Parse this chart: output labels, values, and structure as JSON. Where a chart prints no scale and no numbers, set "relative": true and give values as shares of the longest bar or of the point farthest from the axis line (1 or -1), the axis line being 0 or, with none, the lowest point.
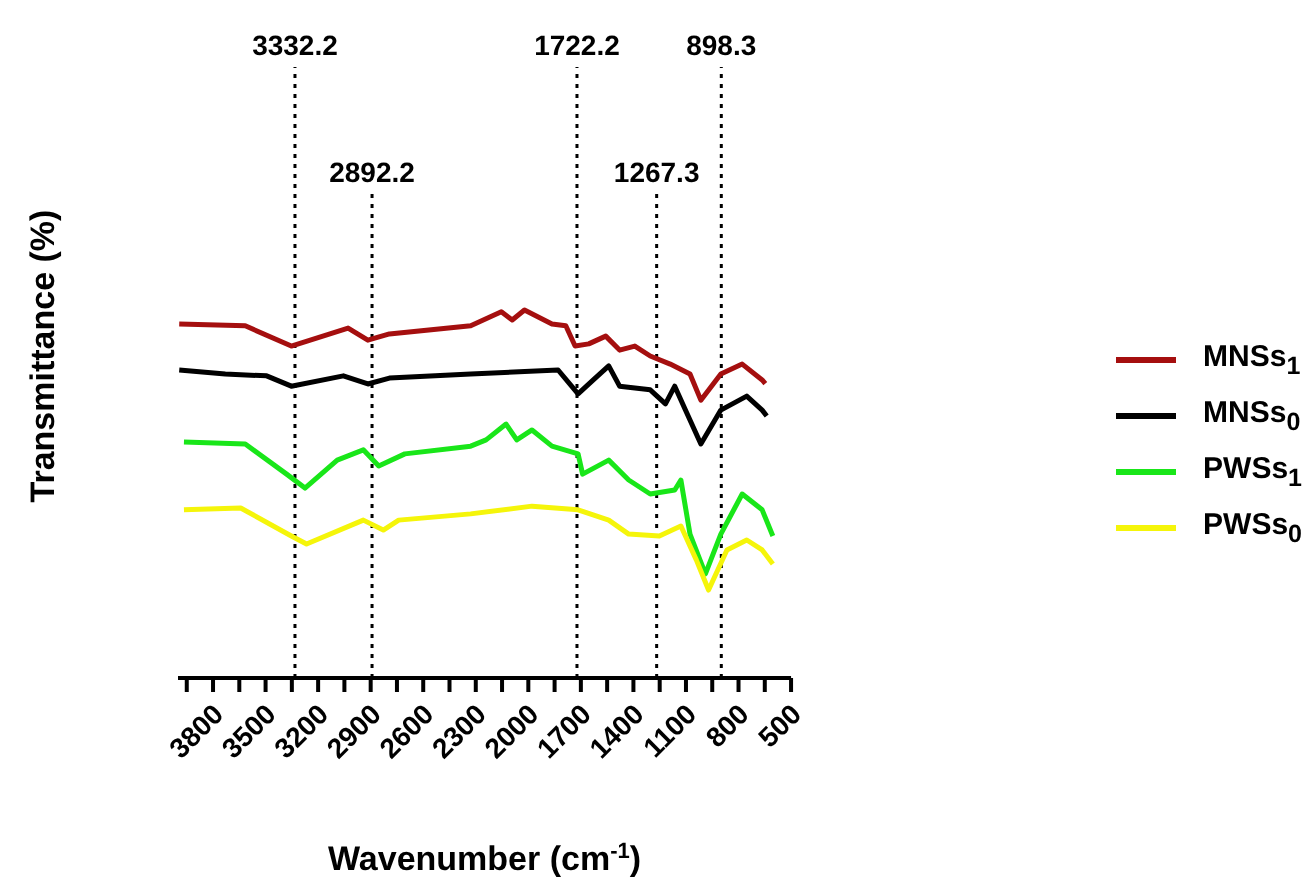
{
  "chart_data": {
    "type": "line",
    "xlabel": "Wavenumber (cm$^{-1}$)",
    "ylabel": "Transmittance (%)",
    "relative": true,
    "grid": false,
    "legend": "right",
    "line_style": "solid",
    "xlim": [
      4000,
      500
    ],
    "xticks": [
      {
        "value": 3950,
        "label": null
      },
      3800,
      {
        "value": 3650,
        "label": null
      },
      3500,
      {
        "value": 3350,
        "label": null
      },
      3200,
      {
        "value": 3050,
        "label": null
      },
      2900,
      {
        "value": 2750,
        "label": null
      },
      2600,
      {
        "value": 2450,
        "label": null
      },
      2300,
      {
        "value": 2150,
        "label": null
      },
      2000,
      {
        "value": 1850,
        "label": null
      },
      1700,
      {
        "value": 1550,
        "label": null
      },
      1400,
      {
        "value": 1250,
        "label": null
      },
      1100,
      {
        "value": 950,
        "label": null
      },
      800,
      {
        "value": 650,
        "label": null
      },
      500
    ],
    "ref_lines": [
      {
        "axis": "x",
        "value": 3332.2,
        "label": "3332.2",
        "color": "#000000",
        "line_style": "dotted"
      },
      {
        "axis": "x",
        "value": 2892.2,
        "label": "2892.2",
        "color": "#000000",
        "line_style": "dotted"
      },
      {
        "axis": "x",
        "value": 1722.2,
        "label": "1722.2",
        "color": "#000000",
        "line_style": "dotted"
      },
      {
        "axis": "x",
        "value": 1267.3,
        "label": "1267.3",
        "color": "#000000",
        "line_style": "dotted"
      },
      {
        "axis": "x",
        "value": 898.3,
        "label": "898.3",
        "color": "#000000",
        "line_style": "dotted"
      }
    ],
    "series": [
      {
        "name": "MNSs$_{1}$",
        "color": "#a50f0f",
        "x": [
          3993,
          3616,
          3353,
          3029,
          2916,
          2793,
          2329,
          2154,
          2092,
          2022,
          1865,
          1786,
          1733,
          1655,
          1558,
          1479,
          1392,
          1304,
          1190,
          1077,
          1015,
          901,
          779,
          665,
          647
        ],
        "values": [
          0.962,
          0.957,
          0.902,
          0.951,
          0.918,
          0.935,
          0.957,
          0.995,
          0.973,
          1.0,
          0.962,
          0.957,
          0.902,
          0.908,
          0.929,
          0.891,
          0.902,
          0.875,
          0.853,
          0.826,
          0.755,
          0.826,
          0.853,
          0.81,
          0.8
        ]
      },
      {
        "name": "MNSs$_{0}$",
        "color": "#000000",
        "x": [
          3993,
          3730,
          3494,
          3353,
          3056,
          2916,
          2793,
          2329,
          1830,
          1716,
          1629,
          1541,
          1479,
          1304,
          1217,
          1164,
          1103,
          1015,
          901,
          753,
          665,
          639
        ],
        "values": [
          0.837,
          0.826,
          0.821,
          0.793,
          0.821,
          0.799,
          0.815,
          0.826,
          0.837,
          0.772,
          0.81,
          0.848,
          0.793,
          0.783,
          0.745,
          0.793,
          0.728,
          0.636,
          0.728,
          0.766,
          0.728,
          0.712
        ]
      },
      {
        "name": "PWSs$_{1}$",
        "color": "#19e619",
        "x": [
          3966,
          3616,
          3380,
          3275,
          3091,
          2942,
          2854,
          2705,
          2329,
          2241,
          2127,
          2066,
          1979,
          1865,
          1716,
          1690,
          1541,
          1427,
          1304,
          1164,
          1129,
          1077,
          989,
          901,
          779,
          665,
          604
        ],
        "values": [
          0.641,
          0.636,
          0.554,
          0.516,
          0.592,
          0.62,
          0.576,
          0.609,
          0.63,
          0.647,
          0.69,
          0.647,
          0.674,
          0.63,
          0.609,
          0.554,
          0.592,
          0.538,
          0.5,
          0.511,
          0.538,
          0.391,
          0.283,
          0.391,
          0.5,
          0.457,
          0.386
        ]
      },
      {
        "name": "PWSs$_{0}$",
        "color": "#f5f50a",
        "x": [
          3966,
          3642,
          3353,
          3266,
          2942,
          2828,
          2740,
          2329,
          1979,
          1716,
          1541,
          1427,
          1252,
          1129,
          1041,
          971,
          866,
          753,
          665,
          604
        ],
        "values": [
          0.457,
          0.462,
          0.386,
          0.364,
          0.429,
          0.402,
          0.429,
          0.446,
          0.467,
          0.457,
          0.429,
          0.391,
          0.386,
          0.413,
          0.321,
          0.239,
          0.348,
          0.375,
          0.348,
          0.31
        ]
      }
    ]
  }
}
